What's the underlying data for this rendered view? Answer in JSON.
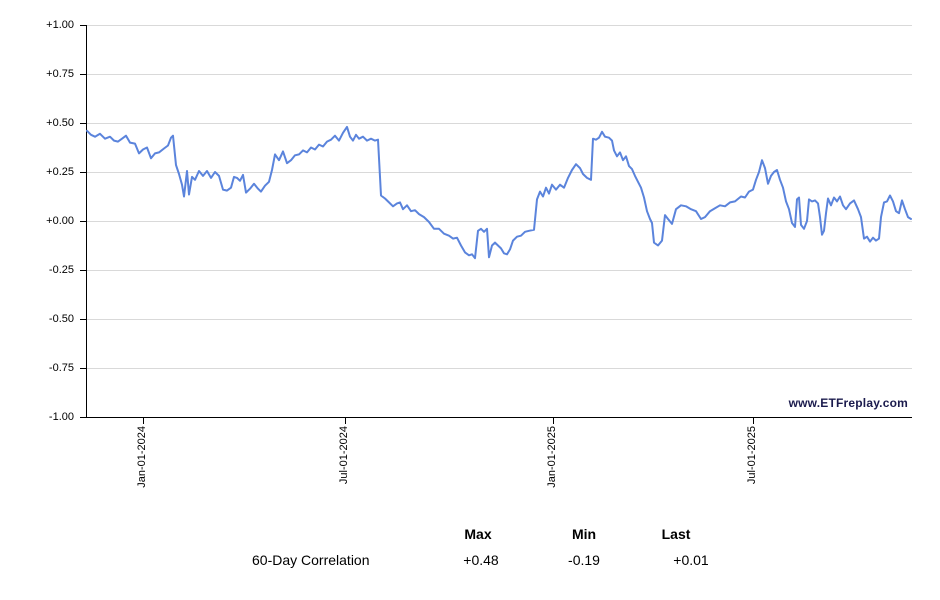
{
  "watermark": "www.ETFreplay.com",
  "colors": {
    "line": "#5b84dc",
    "grid": "#d9d9d9",
    "axis": "#000000",
    "watermark_text": "#1b1b4d"
  },
  "summary_table": {
    "headers": [
      "Max",
      "Min",
      "Last"
    ],
    "rows": [
      {
        "label": "60-Day Correlation",
        "max": "+0.48",
        "min": "-0.19",
        "last": "+0.01"
      }
    ]
  },
  "chart_data": {
    "type": "line",
    "title": "",
    "series_name": "60-Day Correlation",
    "legend": "none",
    "grid": true,
    "ylim": [
      -1,
      1
    ],
    "y_ticks": [
      "+1.00",
      "+0.75",
      "+0.50",
      "+0.25",
      "+0.00",
      "-0.25",
      "-0.50",
      "-0.75",
      "-1.00"
    ],
    "x_ticks": [
      {
        "label": "Jan-01-2024",
        "pos": 0.0691
      },
      {
        "label": "Jul-01-2024",
        "pos": 0.3139
      },
      {
        "label": "Jan-01-2025",
        "pos": 0.5661
      },
      {
        "label": "Jul-01-2025",
        "pos": 0.8085
      }
    ],
    "stats": {
      "max": 0.48,
      "min": -0.19,
      "last": 0.01
    },
    "points": [
      [
        0.0,
        0.46
      ],
      [
        0.0048,
        0.44
      ],
      [
        0.0097,
        0.43
      ],
      [
        0.0158,
        0.445
      ],
      [
        0.0218,
        0.42
      ],
      [
        0.0279,
        0.43
      ],
      [
        0.0327,
        0.41
      ],
      [
        0.0376,
        0.405
      ],
      [
        0.0424,
        0.42
      ],
      [
        0.0473,
        0.435
      ],
      [
        0.0521,
        0.4
      ],
      [
        0.0582,
        0.395
      ],
      [
        0.063,
        0.345
      ],
      [
        0.0679,
        0.365
      ],
      [
        0.0727,
        0.375
      ],
      [
        0.0776,
        0.32
      ],
      [
        0.0824,
        0.345
      ],
      [
        0.0873,
        0.35
      ],
      [
        0.0933,
        0.37
      ],
      [
        0.0982,
        0.385
      ],
      [
        0.1018,
        0.425
      ],
      [
        0.1042,
        0.435
      ],
      [
        0.1079,
        0.285
      ],
      [
        0.1115,
        0.24
      ],
      [
        0.1152,
        0.185
      ],
      [
        0.1176,
        0.125
      ],
      [
        0.1212,
        0.255
      ],
      [
        0.1236,
        0.135
      ],
      [
        0.1273,
        0.225
      ],
      [
        0.1309,
        0.21
      ],
      [
        0.1358,
        0.255
      ],
      [
        0.1406,
        0.23
      ],
      [
        0.1455,
        0.255
      ],
      [
        0.1503,
        0.22
      ],
      [
        0.1552,
        0.25
      ],
      [
        0.16,
        0.23
      ],
      [
        0.1648,
        0.16
      ],
      [
        0.1697,
        0.155
      ],
      [
        0.1745,
        0.17
      ],
      [
        0.1782,
        0.225
      ],
      [
        0.1818,
        0.22
      ],
      [
        0.1855,
        0.205
      ],
      [
        0.1891,
        0.235
      ],
      [
        0.1927,
        0.145
      ],
      [
        0.1976,
        0.165
      ],
      [
        0.2024,
        0.19
      ],
      [
        0.2073,
        0.165
      ],
      [
        0.2109,
        0.15
      ],
      [
        0.2158,
        0.18
      ],
      [
        0.2206,
        0.2
      ],
      [
        0.2242,
        0.26
      ],
      [
        0.2279,
        0.34
      ],
      [
        0.2327,
        0.31
      ],
      [
        0.2376,
        0.355
      ],
      [
        0.2424,
        0.295
      ],
      [
        0.2473,
        0.31
      ],
      [
        0.2521,
        0.335
      ],
      [
        0.257,
        0.34
      ],
      [
        0.2618,
        0.36
      ],
      [
        0.2667,
        0.35
      ],
      [
        0.2715,
        0.375
      ],
      [
        0.2764,
        0.365
      ],
      [
        0.2812,
        0.39
      ],
      [
        0.2861,
        0.38
      ],
      [
        0.2909,
        0.405
      ],
      [
        0.2958,
        0.415
      ],
      [
        0.3006,
        0.435
      ],
      [
        0.3055,
        0.41
      ],
      [
        0.3103,
        0.45
      ],
      [
        0.3152,
        0.48
      ],
      [
        0.3188,
        0.43
      ],
      [
        0.3224,
        0.41
      ],
      [
        0.3261,
        0.44
      ],
      [
        0.3297,
        0.42
      ],
      [
        0.3345,
        0.43
      ],
      [
        0.3394,
        0.41
      ],
      [
        0.3442,
        0.42
      ],
      [
        0.3491,
        0.41
      ],
      [
        0.3527,
        0.415
      ],
      [
        0.3564,
        0.13
      ],
      [
        0.3612,
        0.115
      ],
      [
        0.3661,
        0.095
      ],
      [
        0.3709,
        0.075
      ],
      [
        0.3758,
        0.09
      ],
      [
        0.3794,
        0.095
      ],
      [
        0.383,
        0.06
      ],
      [
        0.3879,
        0.08
      ],
      [
        0.3927,
        0.05
      ],
      [
        0.3976,
        0.055
      ],
      [
        0.4024,
        0.035
      ],
      [
        0.4085,
        0.02
      ],
      [
        0.4145,
        -0.005
      ],
      [
        0.4206,
        -0.04
      ],
      [
        0.4267,
        -0.04
      ],
      [
        0.4327,
        -0.065
      ],
      [
        0.4388,
        -0.075
      ],
      [
        0.4436,
        -0.09
      ],
      [
        0.4485,
        -0.085
      ],
      [
        0.4533,
        -0.125
      ],
      [
        0.4582,
        -0.16
      ],
      [
        0.463,
        -0.175
      ],
      [
        0.4667,
        -0.17
      ],
      [
        0.4703,
        -0.19
      ],
      [
        0.4739,
        -0.05
      ],
      [
        0.4776,
        -0.04
      ],
      [
        0.4812,
        -0.055
      ],
      [
        0.4848,
        -0.04
      ],
      [
        0.4873,
        -0.185
      ],
      [
        0.4909,
        -0.125
      ],
      [
        0.4945,
        -0.11
      ],
      [
        0.4982,
        -0.125
      ],
      [
        0.5018,
        -0.14
      ],
      [
        0.5055,
        -0.165
      ],
      [
        0.5091,
        -0.17
      ],
      [
        0.5127,
        -0.145
      ],
      [
        0.5164,
        -0.1
      ],
      [
        0.5212,
        -0.08
      ],
      [
        0.5261,
        -0.075
      ],
      [
        0.5309,
        -0.055
      ],
      [
        0.5358,
        -0.05
      ],
      [
        0.5418,
        -0.045
      ],
      [
        0.5455,
        0.11
      ],
      [
        0.5491,
        0.15
      ],
      [
        0.5527,
        0.125
      ],
      [
        0.5564,
        0.17
      ],
      [
        0.56,
        0.14
      ],
      [
        0.5636,
        0.185
      ],
      [
        0.5685,
        0.16
      ],
      [
        0.5733,
        0.185
      ],
      [
        0.5782,
        0.17
      ],
      [
        0.583,
        0.22
      ],
      [
        0.5879,
        0.26
      ],
      [
        0.5927,
        0.29
      ],
      [
        0.5976,
        0.27
      ],
      [
        0.6012,
        0.24
      ],
      [
        0.6061,
        0.22
      ],
      [
        0.6109,
        0.21
      ],
      [
        0.6133,
        0.42
      ],
      [
        0.617,
        0.415
      ],
      [
        0.6206,
        0.425
      ],
      [
        0.6242,
        0.455
      ],
      [
        0.6279,
        0.43
      ],
      [
        0.6327,
        0.425
      ],
      [
        0.6364,
        0.41
      ],
      [
        0.6388,
        0.36
      ],
      [
        0.6424,
        0.33
      ],
      [
        0.6461,
        0.35
      ],
      [
        0.6497,
        0.31
      ],
      [
        0.6533,
        0.33
      ],
      [
        0.657,
        0.28
      ],
      [
        0.6606,
        0.265
      ],
      [
        0.6642,
        0.23
      ],
      [
        0.6679,
        0.2
      ],
      [
        0.6715,
        0.17
      ],
      [
        0.6752,
        0.12
      ],
      [
        0.6788,
        0.05
      ],
      [
        0.6824,
        0.01
      ],
      [
        0.6848,
        -0.01
      ],
      [
        0.6873,
        -0.11
      ],
      [
        0.6921,
        -0.125
      ],
      [
        0.697,
        -0.1
      ],
      [
        0.7006,
        0.03
      ],
      [
        0.7042,
        0.01
      ],
      [
        0.7091,
        -0.015
      ],
      [
        0.7139,
        0.06
      ],
      [
        0.72,
        0.08
      ],
      [
        0.7261,
        0.075
      ],
      [
        0.7321,
        0.06
      ],
      [
        0.7382,
        0.05
      ],
      [
        0.7442,
        0.01
      ],
      [
        0.7491,
        0.02
      ],
      [
        0.7552,
        0.05
      ],
      [
        0.7612,
        0.065
      ],
      [
        0.7673,
        0.08
      ],
      [
        0.7733,
        0.075
      ],
      [
        0.7794,
        0.095
      ],
      [
        0.7855,
        0.1
      ],
      [
        0.7927,
        0.125
      ],
      [
        0.7976,
        0.12
      ],
      [
        0.8024,
        0.15
      ],
      [
        0.8073,
        0.16
      ],
      [
        0.8109,
        0.21
      ],
      [
        0.8145,
        0.25
      ],
      [
        0.8182,
        0.31
      ],
      [
        0.8218,
        0.27
      ],
      [
        0.8255,
        0.19
      ],
      [
        0.8291,
        0.23
      ],
      [
        0.8327,
        0.25
      ],
      [
        0.8364,
        0.26
      ],
      [
        0.84,
        0.21
      ],
      [
        0.8436,
        0.17
      ],
      [
        0.8473,
        0.1
      ],
      [
        0.8509,
        0.06
      ],
      [
        0.8545,
        -0.01
      ],
      [
        0.8582,
        -0.03
      ],
      [
        0.8606,
        0.11
      ],
      [
        0.863,
        0.12
      ],
      [
        0.8655,
        -0.02
      ],
      [
        0.8691,
        -0.04
      ],
      [
        0.8727,
        0.0
      ],
      [
        0.8752,
        0.11
      ],
      [
        0.8788,
        0.1
      ],
      [
        0.8824,
        0.105
      ],
      [
        0.8861,
        0.09
      ],
      [
        0.8885,
        0.02
      ],
      [
        0.8909,
        -0.07
      ],
      [
        0.8933,
        -0.05
      ],
      [
        0.8958,
        0.04
      ],
      [
        0.8982,
        0.115
      ],
      [
        0.9018,
        0.08
      ],
      [
        0.9055,
        0.12
      ],
      [
        0.9091,
        0.1
      ],
      [
        0.9127,
        0.125
      ],
      [
        0.9164,
        0.08
      ],
      [
        0.92,
        0.06
      ],
      [
        0.9248,
        0.09
      ],
      [
        0.9297,
        0.105
      ],
      [
        0.9345,
        0.06
      ],
      [
        0.9382,
        0.02
      ],
      [
        0.9418,
        -0.09
      ],
      [
        0.9455,
        -0.08
      ],
      [
        0.9491,
        -0.105
      ],
      [
        0.9527,
        -0.085
      ],
      [
        0.9564,
        -0.1
      ],
      [
        0.96,
        -0.09
      ],
      [
        0.9624,
        0.02
      ],
      [
        0.9661,
        0.095
      ],
      [
        0.9697,
        0.1
      ],
      [
        0.9733,
        0.13
      ],
      [
        0.977,
        0.1
      ],
      [
        0.9806,
        0.05
      ],
      [
        0.9842,
        0.04
      ],
      [
        0.9879,
        0.105
      ],
      [
        0.9915,
        0.06
      ],
      [
        0.9952,
        0.02
      ],
      [
        0.9988,
        0.01
      ]
    ]
  }
}
